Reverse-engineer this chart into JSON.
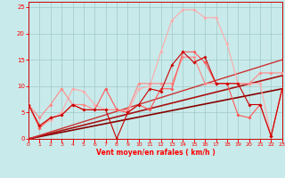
{
  "xlabel": "Vent moyen/en rafales ( km/h )",
  "xlim": [
    0,
    23
  ],
  "ylim": [
    0,
    26
  ],
  "xticks": [
    0,
    1,
    2,
    3,
    4,
    5,
    6,
    7,
    8,
    9,
    10,
    11,
    12,
    13,
    14,
    15,
    16,
    17,
    18,
    19,
    20,
    21,
    22,
    23
  ],
  "yticks": [
    0,
    5,
    10,
    15,
    20,
    25
  ],
  "bg_color": "#c8eaea",
  "grid_color": "#a0c8c8",
  "lines": [
    {
      "x": [
        0,
        23
      ],
      "y": [
        0,
        9.5
      ],
      "color": "#880000",
      "lw": 1.2,
      "marker": null
    },
    {
      "x": [
        0,
        23
      ],
      "y": [
        0,
        12.0
      ],
      "color": "#aa1111",
      "lw": 1.2,
      "marker": null
    },
    {
      "x": [
        0,
        23
      ],
      "y": [
        0,
        15.0
      ],
      "color": "#cc3333",
      "lw": 1.0,
      "marker": null
    },
    {
      "x": [
        0,
        1,
        2,
        3,
        4,
        5,
        6,
        7,
        8,
        9,
        10,
        11,
        12,
        13,
        14,
        15,
        16,
        17,
        18,
        19,
        20,
        21,
        22,
        23
      ],
      "y": [
        6.5,
        2.5,
        3.5,
        5.0,
        9.5,
        9.0,
        6.5,
        5.5,
        5.5,
        5.0,
        9.5,
        10.0,
        16.5,
        22.5,
        24.5,
        24.5,
        23.0,
        23.0,
        18.0,
        10.5,
        10.5,
        10.5,
        0.5,
        9.5
      ],
      "color": "#ffaaaa",
      "lw": 0.8,
      "marker": "D",
      "ms": 1.8
    },
    {
      "x": [
        0,
        1,
        2,
        3,
        4,
        5,
        6,
        7,
        8,
        9,
        10,
        11,
        12,
        13,
        14,
        15,
        16,
        17,
        18,
        19,
        20,
        21,
        22,
        23
      ],
      "y": [
        6.5,
        4.0,
        6.5,
        9.5,
        6.5,
        6.5,
        5.5,
        5.5,
        5.5,
        5.5,
        10.5,
        10.5,
        10.5,
        10.5,
        15.5,
        15.5,
        10.5,
        10.5,
        10.5,
        10.5,
        10.5,
        12.5,
        12.5,
        12.5
      ],
      "color": "#ff8888",
      "lw": 0.8,
      "marker": "D",
      "ms": 1.8
    },
    {
      "x": [
        0,
        1,
        2,
        3,
        4,
        5,
        6,
        7,
        8,
        9,
        10,
        11,
        12,
        13,
        14,
        15,
        16,
        17,
        18,
        19,
        20,
        21,
        22,
        23
      ],
      "y": [
        6.5,
        2.0,
        4.0,
        4.5,
        6.5,
        5.5,
        5.5,
        9.5,
        5.5,
        5.0,
        6.5,
        5.5,
        9.5,
        9.5,
        16.5,
        16.5,
        14.5,
        10.5,
        10.5,
        4.5,
        4.0,
        6.5,
        0.5,
        9.5
      ],
      "color": "#ff5555",
      "lw": 0.8,
      "marker": "D",
      "ms": 1.8
    },
    {
      "x": [
        0,
        1,
        2,
        3,
        4,
        5,
        6,
        7,
        8,
        9,
        10,
        11,
        12,
        13,
        14,
        15,
        16,
        17,
        18,
        19,
        20,
        21,
        22,
        23
      ],
      "y": [
        6.5,
        2.5,
        4.0,
        4.5,
        6.5,
        5.5,
        5.5,
        5.5,
        0.0,
        5.0,
        6.5,
        9.5,
        9.0,
        14.0,
        16.5,
        14.5,
        15.5,
        10.5,
        10.5,
        10.5,
        6.5,
        6.5,
        0.5,
        9.5
      ],
      "color": "#cc0000",
      "lw": 0.8,
      "marker": "D",
      "ms": 1.8
    }
  ]
}
